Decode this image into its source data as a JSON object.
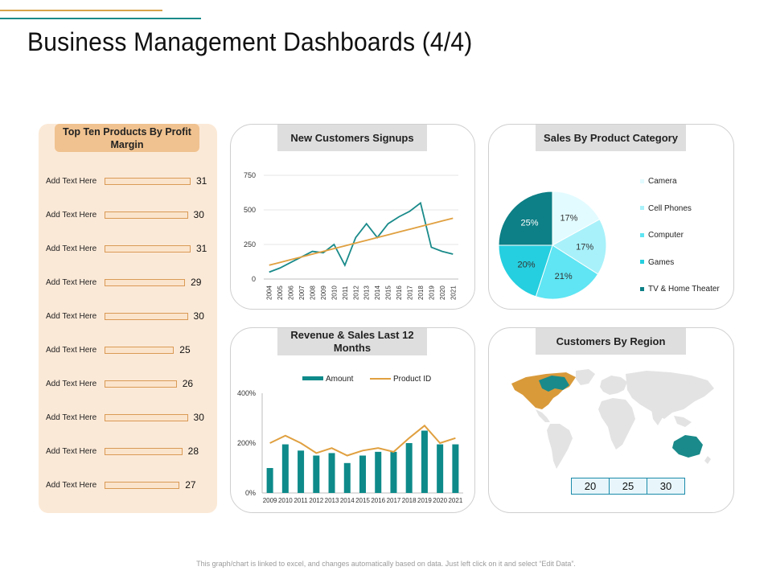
{
  "title": "Business Management Dashboards (4/4)",
  "footer": "This graph/chart is linked to excel, and changes automatically based on data. Just left click on it and select “Edit Data”.",
  "colors": {
    "accent_orange": "#d8a24a",
    "accent_teal": "#1a8a8a",
    "bar_teal": "#0e8a8a",
    "line_orange": "#e0a040"
  },
  "top_products": {
    "header": "Top Ten Products By Profit Margin",
    "items": [
      {
        "label": "Add Text Here",
        "value": 31
      },
      {
        "label": "Add Text Here",
        "value": 30
      },
      {
        "label": "Add Text Here",
        "value": 31
      },
      {
        "label": "Add Text Here",
        "value": 29
      },
      {
        "label": "Add Text Here",
        "value": 30
      },
      {
        "label": "Add Text Here",
        "value": 25
      },
      {
        "label": "Add Text Here",
        "value": 26
      },
      {
        "label": "Add Text Here",
        "value": 30
      },
      {
        "label": "Add Text Here",
        "value": 28
      },
      {
        "label": "Add Text Here",
        "value": 27
      }
    ]
  },
  "signups": {
    "header": "New Customers Signups"
  },
  "category": {
    "header": "Sales By Product Category"
  },
  "revenue": {
    "header": "Revenue & Sales Last 12 Months"
  },
  "region": {
    "header": "Customers By Region",
    "values": [
      "20",
      "25",
      "30"
    ]
  },
  "chart_data": [
    {
      "type": "bar",
      "title": "Top Ten Products By Profit Margin",
      "categories": [
        "Add Text Here",
        "Add Text Here",
        "Add Text Here",
        "Add Text Here",
        "Add Text Here",
        "Add Text Here",
        "Add Text Here",
        "Add Text Here",
        "Add Text Here",
        "Add Text Here"
      ],
      "values": [
        31,
        30,
        31,
        29,
        30,
        25,
        26,
        30,
        28,
        27
      ],
      "orientation": "horizontal"
    },
    {
      "type": "line",
      "title": "New Customers Signups",
      "x": [
        "2004",
        "2005",
        "2006",
        "2007",
        "2008",
        "2009",
        "2010",
        "2011",
        "2012",
        "2013",
        "2014",
        "2015",
        "2016",
        "2017",
        "2018",
        "2019",
        "2020",
        "2021"
      ],
      "series": [
        {
          "values": [
            50,
            80,
            120,
            160,
            200,
            190,
            250,
            100,
            300,
            400,
            300,
            400,
            450,
            490,
            550,
            230,
            200,
            180
          ]
        },
        {
          "values": [
            100,
            120,
            140,
            160,
            180,
            200,
            220,
            240,
            260,
            280,
            300,
            320,
            340,
            360,
            380,
            400,
            420,
            440
          ]
        }
      ],
      "yticks": [
        "0",
        "250",
        "500",
        "750"
      ],
      "ylim": [
        0,
        750
      ],
      "grid": true
    },
    {
      "type": "pie",
      "title": "Sales By Product Category",
      "labels": [
        "Camera",
        "Cell Phones",
        "Computer",
        "Games",
        "TV & Home Theater"
      ],
      "values": [
        17,
        17,
        21,
        20,
        25
      ],
      "value_labels": [
        "17%",
        "17%",
        "21%",
        "20%",
        "25%"
      ],
      "colors": [
        "#e2fbff",
        "#a8f1fa",
        "#5fe5f3",
        "#25cfdf",
        "#0d7f86"
      ],
      "legend": "right"
    },
    {
      "type": "bar",
      "title": "Revenue & Sales Last 12 Months",
      "categories": [
        "2009",
        "2010",
        "2011",
        "2012",
        "2013",
        "2014",
        "2015",
        "2016",
        "2017",
        "2018",
        "2019",
        "2020",
        "2021"
      ],
      "series": [
        {
          "name": "Amount",
          "type": "bar",
          "values": [
            100,
            195,
            170,
            150,
            160,
            120,
            150,
            165,
            165,
            200,
            250,
            195,
            195
          ]
        },
        {
          "name": "Product ID",
          "type": "line",
          "values": [
            200,
            230,
            200,
            160,
            180,
            150,
            170,
            180,
            165,
            220,
            270,
            200,
            220
          ]
        }
      ],
      "yticks": [
        "0%",
        "200%",
        "400%"
      ],
      "ylim": [
        0,
        400
      ],
      "legend": "top"
    }
  ]
}
